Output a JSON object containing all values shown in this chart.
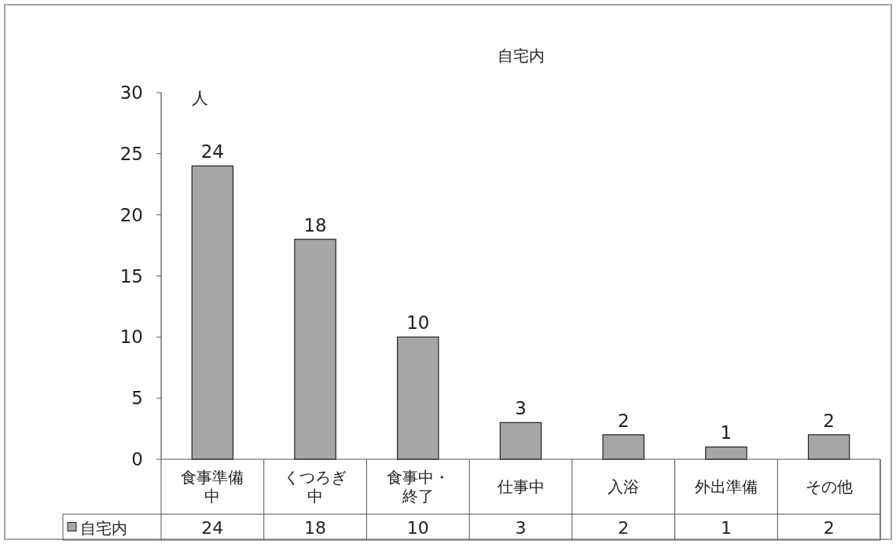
{
  "chart_data": {
    "type": "bar",
    "title": "自宅内",
    "ylabel": "人",
    "categories": [
      "食事準備中",
      "くつろぎ中",
      "食事中・終了",
      "仕事中",
      "入浴",
      "外出準備",
      "その他"
    ],
    "series": [
      {
        "name": "自宅内",
        "color": "#a6a6a6",
        "values": [
          24,
          18,
          10,
          3,
          2,
          1,
          2
        ],
        "value_labels": [
          "24",
          "18",
          "10",
          "3",
          "2",
          "1",
          "2"
        ]
      }
    ],
    "ylim": [
      0,
      30
    ],
    "yticks": [
      0,
      5,
      10,
      15,
      20,
      25,
      30
    ],
    "data_labels": true,
    "grid": false,
    "legend": "bottom"
  }
}
